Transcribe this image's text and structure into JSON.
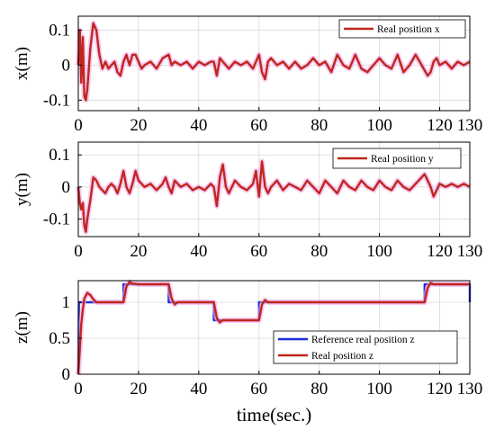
{
  "figure": {
    "xlabel": "time(sec.)"
  },
  "chart_data": [
    {
      "type": "line",
      "ylabel": "x(m)",
      "xlim": [
        0,
        130
      ],
      "ylim": [
        -0.13,
        0.14
      ],
      "xticks": [
        0,
        20,
        40,
        60,
        80,
        100,
        120,
        130
      ],
      "yticks": [
        0.1,
        0,
        -0.1
      ],
      "ytick_labels": [
        "0.1",
        "0",
        "-0.1"
      ],
      "grid": true,
      "legend_position": "top-right",
      "series": [
        {
          "name": "Real position x",
          "color": "#c0261d",
          "x": [
            0,
            0.5,
            1,
            1.5,
            2,
            2.5,
            3,
            4,
            5,
            6,
            7,
            8,
            9,
            10,
            11,
            12,
            13,
            14,
            15,
            16,
            17,
            18,
            19,
            20,
            21,
            22,
            24,
            26,
            28,
            30,
            31,
            32,
            34,
            36,
            38,
            40,
            42,
            44,
            45,
            46,
            47,
            48,
            50,
            52,
            54,
            56,
            58,
            60,
            61,
            62,
            63,
            64,
            66,
            68,
            70,
            72,
            74,
            76,
            78,
            80,
            82,
            84,
            86,
            88,
            90,
            92,
            94,
            96,
            98,
            100,
            102,
            104,
            106,
            108,
            110,
            112,
            114,
            116,
            117,
            118,
            119,
            120,
            122,
            124,
            126,
            128,
            130
          ],
          "y": [
            0,
            0.1,
            -0.05,
            0.08,
            -0.09,
            -0.1,
            -0.07,
            0.05,
            0.12,
            0.1,
            0.03,
            -0.01,
            0.01,
            -0.01,
            0.0,
            0.01,
            -0.02,
            -0.03,
            0.01,
            0.03,
            0.0,
            0.03,
            0.03,
            0.01,
            -0.01,
            0.0,
            0.01,
            -0.01,
            0.02,
            0.03,
            0.0,
            0.01,
            0.0,
            0.01,
            -0.01,
            0.01,
            0.0,
            0.01,
            0.01,
            -0.03,
            0.02,
            0.01,
            -0.01,
            0.01,
            0.0,
            0.01,
            -0.01,
            0.03,
            -0.02,
            -0.04,
            0.01,
            0.02,
            0.0,
            0.01,
            -0.01,
            0.01,
            -0.01,
            0.0,
            0.02,
            0.0,
            0.01,
            -0.02,
            0.03,
            0.0,
            -0.01,
            0.03,
            -0.01,
            -0.02,
            0.0,
            0.02,
            0.0,
            -0.01,
            0.03,
            -0.02,
            0.0,
            0.03,
            0.0,
            -0.03,
            -0.02,
            0.01,
            0.02,
            0.0,
            0.01,
            -0.01,
            0.01,
            0.0,
            0.01
          ]
        }
      ]
    },
    {
      "type": "line",
      "ylabel": "y(m)",
      "xlim": [
        0,
        130
      ],
      "ylim": [
        -0.155,
        0.14
      ],
      "xticks": [
        0,
        20,
        40,
        60,
        80,
        100,
        120,
        130
      ],
      "yticks": [
        0.1,
        0,
        -0.1
      ],
      "ytick_labels": [
        "0.1",
        "0",
        "-0.1"
      ],
      "grid": true,
      "legend_position": "top-right",
      "series": [
        {
          "name": "Real position y",
          "color": "#c0261d",
          "x": [
            0,
            0.5,
            1,
            1.5,
            2,
            2.5,
            3,
            4,
            5,
            6,
            7,
            8,
            9,
            10,
            11,
            12,
            13,
            14,
            15,
            16,
            17,
            18,
            19,
            20,
            22,
            24,
            26,
            28,
            29,
            30,
            31,
            32,
            34,
            36,
            38,
            40,
            42,
            44,
            45,
            46,
            47,
            48,
            49,
            50,
            52,
            54,
            56,
            58,
            59,
            60,
            61,
            62,
            63,
            64,
            66,
            68,
            70,
            72,
            74,
            76,
            78,
            80,
            82,
            84,
            86,
            88,
            90,
            92,
            94,
            96,
            98,
            100,
            102,
            104,
            106,
            108,
            110,
            112,
            114,
            115,
            116,
            117,
            118,
            119,
            120,
            122,
            124,
            126,
            128,
            130
          ],
          "y": [
            0,
            -0.05,
            -0.07,
            -0.05,
            -0.12,
            -0.14,
            -0.1,
            -0.04,
            0.03,
            0.02,
            0.0,
            -0.01,
            -0.02,
            0.0,
            0.01,
            0.0,
            -0.02,
            0.01,
            0.05,
            0.0,
            -0.02,
            0.01,
            0.05,
            0.02,
            0.0,
            0.01,
            -0.01,
            0.01,
            0.03,
            0.0,
            -0.02,
            0.02,
            0.0,
            0.01,
            -0.01,
            0.0,
            -0.01,
            0.01,
            0.0,
            -0.06,
            0.03,
            0.07,
            0.0,
            -0.02,
            0.02,
            0.0,
            -0.01,
            0.01,
            0.05,
            -0.03,
            0.08,
            0.0,
            -0.02,
            0.0,
            0.02,
            -0.01,
            0.01,
            0.0,
            -0.01,
            0.02,
            0.0,
            -0.02,
            0.02,
            0.0,
            -0.02,
            0.02,
            0.0,
            -0.01,
            0.02,
            0.0,
            -0.01,
            0.02,
            0.0,
            -0.01,
            0.02,
            0.0,
            -0.01,
            0.01,
            0.03,
            0.04,
            0.02,
            0.0,
            -0.03,
            -0.01,
            0.01,
            0.0,
            0.01,
            0.0,
            0.01,
            0.0
          ]
        }
      ]
    },
    {
      "type": "line",
      "ylabel": "z(m)",
      "xlim": [
        0,
        130
      ],
      "ylim": [
        0,
        1.3
      ],
      "xticks": [
        0,
        20,
        40,
        60,
        80,
        100,
        120,
        130
      ],
      "yticks": [
        1,
        0.5,
        0
      ],
      "ytick_labels": [
        "1",
        "0.5",
        "0"
      ],
      "grid": true,
      "legend_position": "bottom-right",
      "series": [
        {
          "name": "Reference real position z",
          "color": "#1f2bd6",
          "x": [
            0,
            0.2,
            15,
            15,
            30,
            30,
            45,
            45,
            60,
            60,
            115,
            115,
            130,
            130
          ],
          "y": [
            0,
            1.0,
            1.0,
            1.25,
            1.25,
            1.0,
            1.0,
            0.75,
            0.75,
            1.0,
            1.0,
            1.25,
            1.25,
            1.0
          ]
        },
        {
          "name": "Real position z",
          "color": "#c0261d",
          "x": [
            0,
            0.5,
            1,
            1.5,
            2,
            3,
            4,
            5,
            6,
            8,
            10,
            15,
            16,
            17,
            18,
            20,
            25,
            30,
            31,
            32,
            33,
            35,
            40,
            45,
            46,
            47,
            48,
            50,
            55,
            60,
            61,
            62,
            63,
            65,
            70,
            80,
            90,
            100,
            110,
            115,
            116,
            117,
            118,
            120,
            125,
            129,
            130
          ],
          "y": [
            0,
            0.35,
            0.7,
            0.9,
            1.05,
            1.13,
            1.1,
            1.04,
            1.0,
            1.0,
            1.0,
            1.0,
            1.22,
            1.28,
            1.26,
            1.25,
            1.25,
            1.25,
            1.05,
            0.97,
            1.0,
            1.0,
            1.0,
            1.0,
            0.78,
            0.72,
            0.75,
            0.75,
            0.75,
            0.75,
            0.97,
            1.03,
            1.0,
            1.0,
            1.0,
            1.0,
            1.0,
            1.0,
            1.0,
            1.0,
            1.2,
            1.27,
            1.25,
            1.25,
            1.25,
            1.25,
            1.25
          ]
        }
      ]
    }
  ]
}
